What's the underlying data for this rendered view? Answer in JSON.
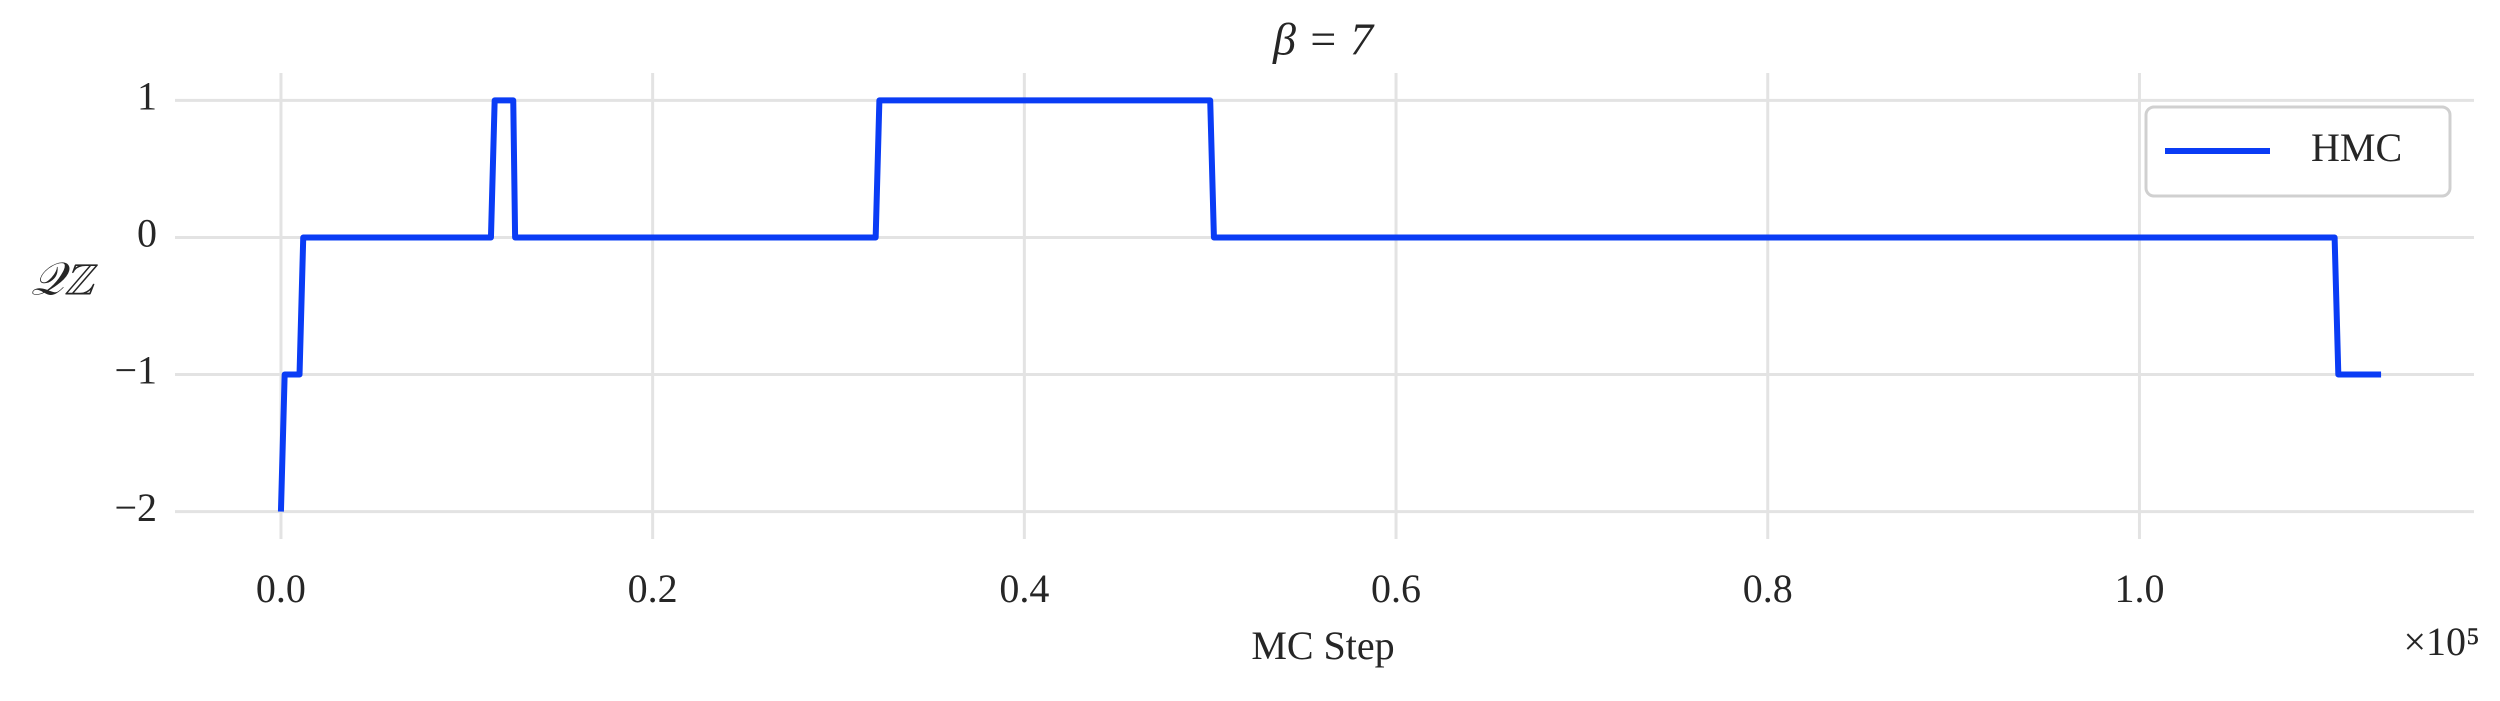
{
  "chart_data": {
    "type": "line",
    "title": "β = 7",
    "x_label": "MC Step",
    "y_label": "𝒬ℤ",
    "x_offset_text": "×10⁵",
    "x": [
      0.0,
      0.002,
      0.01,
      0.012,
      0.113,
      0.115,
      0.125,
      0.126,
      0.32,
      0.322,
      0.5,
      0.502,
      1.105,
      1.107,
      1.13
    ],
    "series": [
      {
        "name": "HMC",
        "color": "#0a3cf5",
        "values": [
          -2,
          -1,
          -1,
          0,
          0,
          1,
          1,
          0,
          0,
          1,
          1,
          0,
          0,
          -1,
          -1
        ]
      }
    ],
    "xlim": [
      -0.057,
      1.18
    ],
    "ylim": [
      -2.2,
      1.2
    ],
    "xticks": [
      {
        "value": 0,
        "label": "0.0"
      },
      0.2,
      0.4,
      0.6,
      0.8,
      {
        "value": 1,
        "label": "1.0"
      }
    ],
    "yticks": [
      {
        "value": -2,
        "label": "−2"
      },
      {
        "value": -1,
        "label": "−1"
      },
      0,
      1
    ],
    "grid": true,
    "legend": "upper right"
  }
}
